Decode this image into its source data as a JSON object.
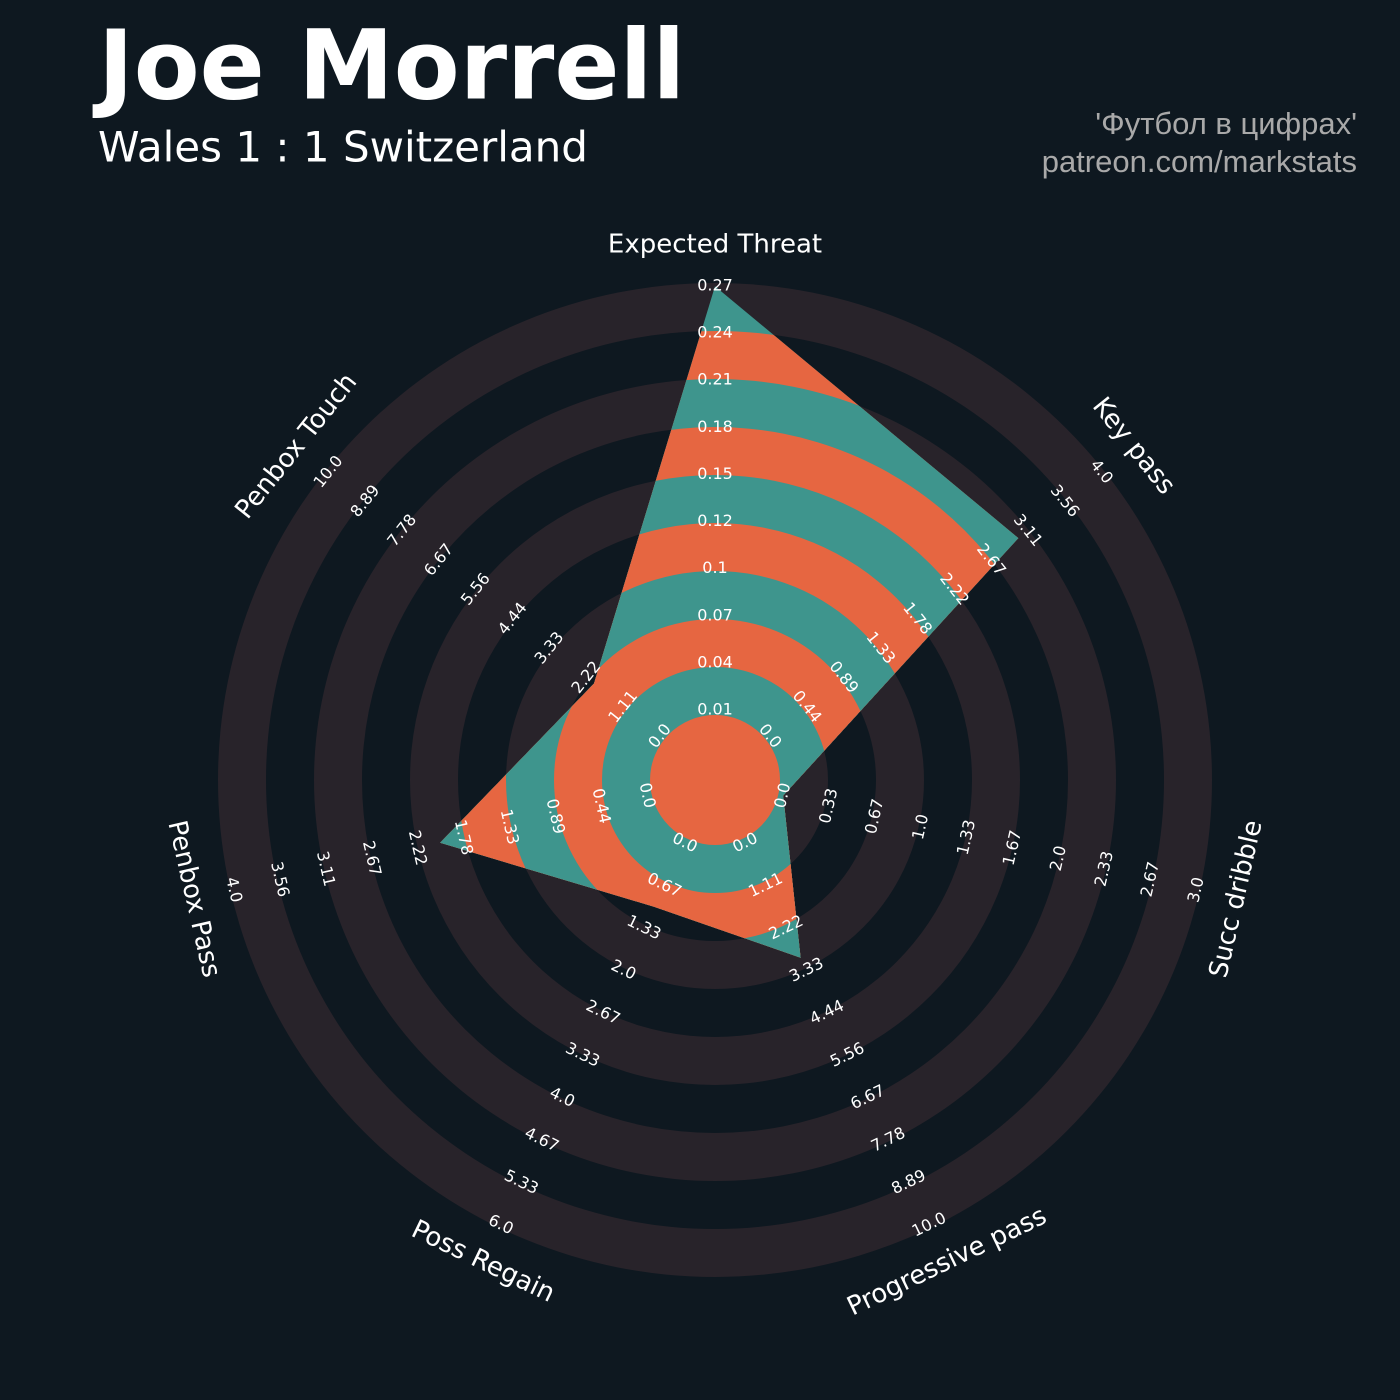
{
  "chart_data": {
    "type": "radar",
    "title": "Joe Morrell",
    "subtitle": "Wales 1 : 1 Switzerland",
    "credits": [
      "'Футбол в цифрах'",
      "patreon.com/markstats"
    ],
    "categories": [
      "Expected Threat",
      "Key pass",
      "Succ dribble",
      "Progressive pass",
      "Poss Regain",
      "Penbox Pass",
      "Penbox Touch"
    ],
    "values": [
      0.268,
      3,
      0,
      3,
      1,
      2,
      2
    ],
    "colors": [
      "#3e958d",
      "#e66641"
    ],
    "ring_color": "#28232a",
    "ranges": [
      [
        0.009,
        0.2682
      ],
      [
        0,
        4
      ],
      [
        0,
        3
      ],
      [
        0,
        10
      ],
      [
        0,
        6
      ],
      [
        0,
        4
      ],
      [
        0,
        10
      ]
    ],
    "ticks": [
      [
        {
          "value": 0.009,
          "label": "0.01"
        },
        {
          "value": 0.0378,
          "label": "0.04"
        },
        {
          "value": 0.0666,
          "label": "0.07"
        },
        {
          "value": 0.0954,
          "label": "0.1"
        },
        {
          "value": 0.1242,
          "label": "0.12"
        },
        {
          "value": 0.153,
          "label": "0.15"
        },
        {
          "value": 0.1818,
          "label": "0.18"
        },
        {
          "value": 0.2106,
          "label": "0.21"
        },
        {
          "value": 0.2394,
          "label": "0.24"
        },
        {
          "value": 0.2682,
          "label": "0.27"
        }
      ],
      [
        {
          "value": 0,
          "label": "0.0"
        },
        {
          "value": 0.4444,
          "label": "0.44"
        },
        {
          "value": 0.8889,
          "label": "0.89"
        },
        {
          "value": 1.3333,
          "label": "1.33"
        },
        {
          "value": 1.7778,
          "label": "1.78"
        },
        {
          "value": 2.2222,
          "label": "2.22"
        },
        {
          "value": 2.6667,
          "label": "2.67"
        },
        {
          "value": 3.1111,
          "label": "3.11"
        },
        {
          "value": 3.5556,
          "label": "3.56"
        },
        {
          "value": 4,
          "label": "4.0"
        }
      ],
      [
        {
          "value": 0,
          "label": "0.0"
        },
        {
          "value": 0.3333,
          "label": "0.33"
        },
        {
          "value": 0.6667,
          "label": "0.67"
        },
        {
          "value": 1,
          "label": "1.0"
        },
        {
          "value": 1.3333,
          "label": "1.33"
        },
        {
          "value": 1.6667,
          "label": "1.67"
        },
        {
          "value": 2,
          "label": "2.0"
        },
        {
          "value": 2.3333,
          "label": "2.33"
        },
        {
          "value": 2.6667,
          "label": "2.67"
        },
        {
          "value": 3,
          "label": "3.0"
        }
      ],
      [
        {
          "value": 0,
          "label": "0.0"
        },
        {
          "value": 1.1111,
          "label": "1.11"
        },
        {
          "value": 2.2222,
          "label": "2.22"
        },
        {
          "value": 3.3333,
          "label": "3.33"
        },
        {
          "value": 4.4444,
          "label": "4.44"
        },
        {
          "value": 5.5556,
          "label": "5.56"
        },
        {
          "value": 6.6667,
          "label": "6.67"
        },
        {
          "value": 7.7778,
          "label": "7.78"
        },
        {
          "value": 8.8889,
          "label": "8.89"
        },
        {
          "value": 10,
          "label": "10.0"
        }
      ],
      [
        {
          "value": 0,
          "label": "0.0"
        },
        {
          "value": 0.6667,
          "label": "0.67"
        },
        {
          "value": 1.3333,
          "label": "1.33"
        },
        {
          "value": 2,
          "label": "2.0"
        },
        {
          "value": 2.6667,
          "label": "2.67"
        },
        {
          "value": 3.3333,
          "label": "3.33"
        },
        {
          "value": 4,
          "label": "4.0"
        },
        {
          "value": 4.6667,
          "label": "4.67"
        },
        {
          "value": 5.3333,
          "label": "5.33"
        },
        {
          "value": 6,
          "label": "6.0"
        }
      ],
      [
        {
          "value": 0,
          "label": "0.0"
        },
        {
          "value": 0.4444,
          "label": "0.44"
        },
        {
          "value": 0.8889,
          "label": "0.89"
        },
        {
          "value": 1.3333,
          "label": "1.33"
        },
        {
          "value": 1.7778,
          "label": "1.78"
        },
        {
          "value": 2.2222,
          "label": "2.22"
        },
        {
          "value": 2.6667,
          "label": "2.67"
        },
        {
          "value": 3.1111,
          "label": "3.11"
        },
        {
          "value": 3.5556,
          "label": "3.56"
        },
        {
          "value": 4,
          "label": "4.0"
        }
      ],
      [
        {
          "value": 0,
          "label": "0.0"
        },
        {
          "value": 1.1111,
          "label": "1.11"
        },
        {
          "value": 2.2222,
          "label": "2.22"
        },
        {
          "value": 3.3333,
          "label": "3.33"
        },
        {
          "value": 4.4444,
          "label": "4.44"
        },
        {
          "value": 5.5556,
          "label": "5.56"
        },
        {
          "value": 6.6667,
          "label": "6.67"
        },
        {
          "value": 7.7778,
          "label": "7.78"
        },
        {
          "value": 8.8889,
          "label": "8.89"
        },
        {
          "value": 10,
          "label": "10.0"
        }
      ]
    ]
  }
}
